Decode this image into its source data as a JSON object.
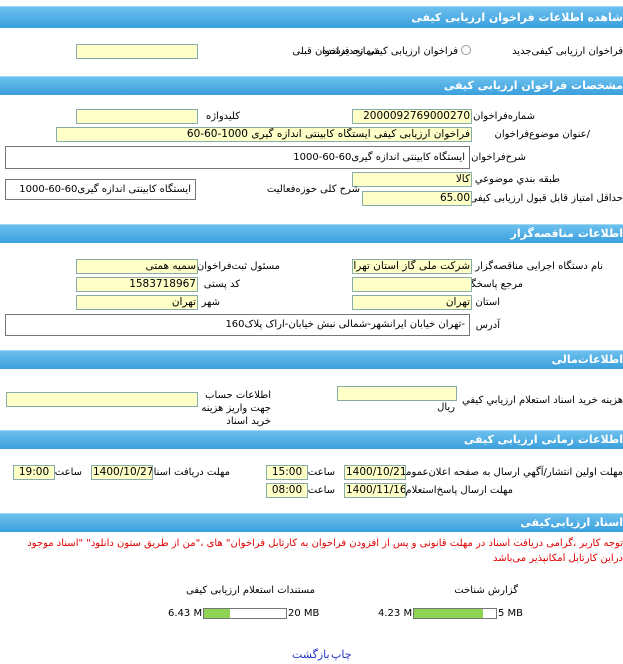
{
  "header": {
    "title": "شاهده اطلاعات فراخوان ارزیابی کیفی"
  },
  "call_type": {
    "new": "فراخوان ارزیابی کیفی‌جدید",
    "renewed": "فراخوان ارزیابی کیفی تجدیدشده",
    "previous_number_label": "شماره فراخوان قبلی"
  },
  "details": {
    "title": "مشخصات فراخوان ارزیابی کیفی",
    "number_label": "شماره‌فراخوان",
    "number": "2000092769000270",
    "keyword_label": "کلیدواژه",
    "subject_label": "/عنوان موضوع‌فراخوان",
    "subject": "فراخوان ارزیابی کیفی ایستگاه کابینتی اندازه گیری 1000-60-60",
    "description_label": "شرح‌فراخوان",
    "description": "ایستگاه کابینتی اندازه گیری60-60-1000",
    "category_label": "طبقه بندي موضوعي",
    "category": "کالا",
    "activity_label": "شرح کلی حوزه‌فعالیت",
    "activity": "ایستگاه کابینتی اندازه گیری60-60-1000",
    "min_score_label": "حداقل امتیاز قابل قبول ارزیابی کیفی",
    "min_score": "65.00"
  },
  "organization": {
    "title": "اطلاعات مناقصه‌گزار",
    "org_label": "نام دستگاه اجرایی مناقصه‌گزار",
    "org": "شرکت ملی گاز استان تهرا",
    "registrar_label": "مسئول ثبت‌فراخوان",
    "registrar": "سمیه همتی",
    "reference_label": "مرجع پاسخگویی",
    "postal_label": "کد پستی",
    "postal": "1583718967",
    "province_label": "استان",
    "province": "تهران",
    "city_label": "شهر",
    "city": "تهران",
    "address_label": "آدرس",
    "address": "-تهران خیابان ایرانشهر-شمالی نبش خیابان-اراک پلاک160"
  },
  "finance": {
    "title": "اطلاعات‌مالی",
    "fee_label": "هزینه خرید اسناد استعلام ارزیابي کيفي",
    "currency": "ریال",
    "account_label": "اطلاعات حساب جهت واریز هزینه خرید اسناد"
  },
  "timing": {
    "title": "اطلاعات زمانی ارزیابی کیفی",
    "publish_label": "مهلت اولین انتشار/آگهي ارسال به صفحه اعلان‌عمومی",
    "publish_date": "1400/10/21",
    "publish_time_label": "ساعت",
    "publish_time": "15:00",
    "receive_label": "مهلت دریافت اسناد",
    "receive_date": "1400/10/27",
    "receive_time_label": "ساعت",
    "receive_time": "19:00",
    "response_label": "مهلت ارسال پاسخ‌استعلام",
    "response_date": "1400/11/16",
    "response_time_label": "ساعت",
    "response_time": "08:00"
  },
  "documents": {
    "title": "اسناد ارزیابی‌کیفی",
    "notice": "توجه کاربر ،گرامی دریافت اسناد در مهلت قانونی و پس از افزودن فراخوان به کارتابل فراخوان\" های ،\"من از طریق ستون دانلود\" \"اسناد موجود دراین کارتابل امکانپذیر می‌باشد",
    "report_label": "گزارش شناخت",
    "inquiry_label": "مستندات استعلام ارزیابی کیفی",
    "files": [
      {
        "used": 4.23,
        "total": 5,
        "used_label": "4.23 MB",
        "total_label": "5 MB"
      },
      {
        "used": 6.43,
        "total": 20,
        "used_label": "6.43 MB",
        "total_label": "20 MB"
      }
    ]
  },
  "footer": {
    "print": "چاپ",
    "back": "بازگشت"
  }
}
